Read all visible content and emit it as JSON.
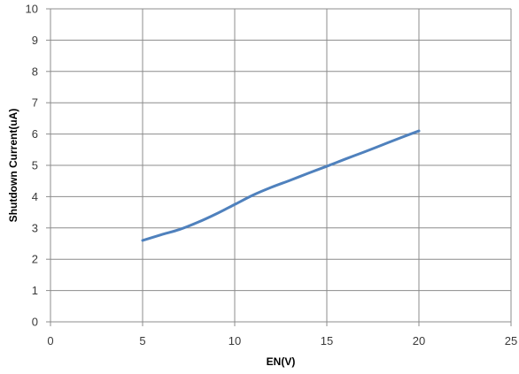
{
  "chart_data": {
    "type": "line",
    "title": "",
    "xlabel": "EN(V)",
    "ylabel": "Shutdown Current(uA)",
    "xlim": [
      0,
      25
    ],
    "ylim": [
      0,
      10
    ],
    "x_ticks": [
      0,
      5,
      10,
      15,
      20,
      25
    ],
    "y_ticks": [
      0,
      1,
      2,
      3,
      4,
      5,
      6,
      7,
      8,
      9,
      10
    ],
    "grid": true,
    "legend": "none",
    "series": [
      {
        "color": "#4f81bd",
        "x": [
          5,
          6,
          7,
          8,
          9,
          10,
          11,
          12,
          13,
          14,
          15,
          16,
          17,
          18,
          19,
          20
        ],
        "y": [
          2.6,
          2.78,
          2.95,
          3.18,
          3.45,
          3.75,
          4.05,
          4.3,
          4.52,
          4.75,
          4.97,
          5.2,
          5.42,
          5.65,
          5.88,
          6.1
        ]
      }
    ]
  }
}
